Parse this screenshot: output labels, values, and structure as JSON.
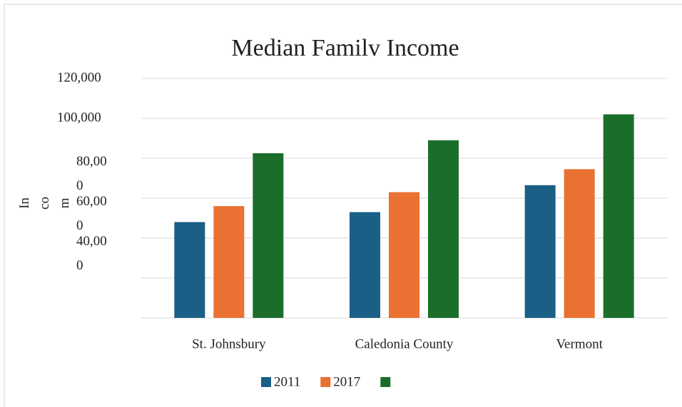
{
  "chart_data": {
    "type": "bar",
    "title": "Median Familv Income",
    "y_label": "In co m",
    "categories": [
      "St. Johnsbury",
      "Caledonia County",
      "Vermont"
    ],
    "series": [
      {
        "name": "2011",
        "color": "#1a5f86",
        "values": [
          48000,
          53000,
          66500
        ]
      },
      {
        "name": "2017",
        "color": "#e97132",
        "values": [
          56000,
          63000,
          74500
        ]
      },
      {
        "name": null,
        "color": "#1b6e2a",
        "values": [
          82500,
          89000,
          102000
        ]
      }
    ],
    "ylim": [
      0,
      120000
    ],
    "yticks": [
      {
        "value": 0,
        "label": null
      },
      {
        "value": 20000,
        "label": null
      },
      {
        "value": 40000,
        "label": "40,000"
      },
      {
        "value": 60000,
        "label": "60,000"
      },
      {
        "value": 80000,
        "label": "80,000"
      },
      {
        "value": 100000,
        "label": "100,000"
      },
      {
        "value": 120000,
        "label": "120,000"
      }
    ],
    "grid": true,
    "legend": "bottom"
  }
}
